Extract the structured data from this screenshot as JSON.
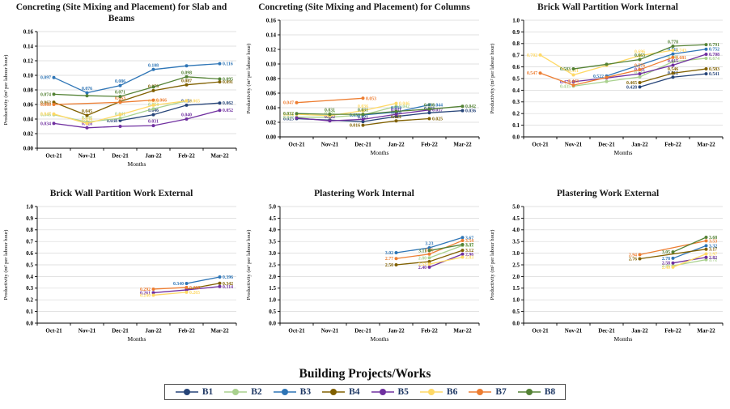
{
  "figure_title": "Building Projects/Works productivity line charts",
  "xlabel": "Months",
  "months": [
    "Oct-21",
    "Nov-21",
    "Dec-21",
    "Jan-22",
    "Feb-22",
    "Mar-22"
  ],
  "legend": {
    "title": "Building Projects/Works",
    "position": "bottom",
    "items": [
      {
        "label": "B1",
        "color": "#264478"
      },
      {
        "label": "B2",
        "color": "#A9D18E"
      },
      {
        "label": "B3",
        "color": "#2E75B6"
      },
      {
        "label": "B4",
        "color": "#806000"
      },
      {
        "label": "B5",
        "color": "#7030A0"
      },
      {
        "label": "B6",
        "color": "#FFD966"
      },
      {
        "label": "B7",
        "color": "#ED7D31"
      },
      {
        "label": "B8",
        "color": "#548235"
      }
    ]
  },
  "chart_data": [
    {
      "type": "line",
      "title": "Concreting (Site Mixing and Placement) for Slab and Beams",
      "xlabel": "Months",
      "ylabel": "Productivity (m³ per labour hour)",
      "ylim": [
        0,
        0.16
      ],
      "ystep": 0.02,
      "ydecimals": 2,
      "grid": "horizontal",
      "categories": [
        "Oct-21",
        "Nov-21",
        "Dec-21",
        "Jan-22",
        "Feb-22",
        "Mar-22"
      ],
      "series": [
        {
          "name": "B1",
          "color": "#264478",
          "values": [
            null,
            null,
            0.038,
            0.046,
            0.059,
            0.062
          ],
          "labels": [
            "",
            "",
            "0.038",
            "0.046",
            "0.059",
            "0.062"
          ]
        },
        {
          "name": "B2",
          "color": "#A9D18E",
          "values": [
            0.046,
            0.036,
            0.041,
            0.054,
            0.065,
            null
          ],
          "labels": [
            "0.046",
            "0.036",
            "0.041",
            "0.054",
            "",
            ""
          ]
        },
        {
          "name": "B3",
          "color": "#2E75B6",
          "values": [
            0.097,
            0.076,
            0.086,
            0.108,
            0.113,
            0.116
          ],
          "labels": [
            "0.097",
            "0.076",
            "0.086",
            "0.108",
            "",
            "0.116"
          ]
        },
        {
          "name": "B4",
          "color": "#806000",
          "values": [
            0.063,
            0.045,
            0.064,
            0.079,
            0.087,
            0.091
          ],
          "labels": [
            "0.063",
            "0.045",
            "",
            "0.079",
            "0.087",
            "0.091"
          ]
        },
        {
          "name": "B5",
          "color": "#7030A0",
          "values": [
            0.034,
            0.028,
            0.03,
            0.031,
            0.04,
            0.052
          ],
          "labels": [
            "0.034",
            "0.028",
            "",
            "0.031",
            "0.040",
            "0.052"
          ]
        },
        {
          "name": "B6",
          "color": "#FFD966",
          "values": [
            0.047,
            0.034,
            0.046,
            0.059,
            0.065,
            null
          ],
          "labels": [
            "0.047",
            "0.034",
            "",
            "0.059",
            "0.065",
            ""
          ]
        },
        {
          "name": "B7",
          "color": "#ED7D31",
          "values": [
            0.06,
            null,
            0.063,
            0.066,
            null,
            null
          ],
          "labels": [
            "0.060",
            "",
            "0.063",
            "0.066",
            "",
            ""
          ]
        },
        {
          "name": "B8",
          "color": "#548235",
          "values": [
            0.074,
            0.072,
            0.071,
            0.084,
            0.098,
            0.095
          ],
          "labels": [
            "0.074",
            "",
            "0.071",
            "",
            "0.098",
            "0.095"
          ]
        }
      ]
    },
    {
      "type": "line",
      "title": "Concreting (Site Mixing and Placement) for Columns",
      "xlabel": "Months",
      "ylabel": "Productivity (m³ per labour hour)",
      "ylim": [
        0,
        0.16
      ],
      "ystep": 0.02,
      "ydecimals": 2,
      "grid": "horizontal",
      "categories": [
        "Oct-21",
        "Nov-21",
        "Dec-21",
        "Jan-22",
        "Feb-22",
        "Mar-22"
      ],
      "series": [
        {
          "name": "B1",
          "color": "#264478",
          "values": [
            0.025,
            0.023,
            0.021,
            0.028,
            0.033,
            0.036
          ],
          "labels": [
            "0.025",
            "",
            "0.021",
            "0.028",
            "0.033",
            "0.036"
          ]
        },
        {
          "name": "B2",
          "color": "#A9D18E",
          "values": [
            0.027,
            0.027,
            0.03,
            0.042,
            null,
            null
          ],
          "labels": [
            "0.027",
            "0.027",
            "",
            "0.042",
            "",
            ""
          ]
        },
        {
          "name": "B3",
          "color": "#2E75B6",
          "values": [
            null,
            null,
            0.03,
            0.034,
            0.044,
            null
          ],
          "labels": [
            "",
            "",
            "0.030",
            "0.034",
            "0.044",
            ""
          ]
        },
        {
          "name": "B4",
          "color": "#806000",
          "values": [
            null,
            null,
            0.016,
            0.022,
            0.025,
            null
          ],
          "labels": [
            "",
            "",
            "0.016",
            "0.022",
            "0.025",
            ""
          ]
        },
        {
          "name": "B5",
          "color": "#7030A0",
          "values": [
            0.026,
            0.022,
            0.024,
            0.031,
            0.037,
            null
          ],
          "labels": [
            "",
            "0.022",
            "",
            "0.031",
            "0.037",
            ""
          ]
        },
        {
          "name": "B6",
          "color": "#FFD966",
          "values": [
            0.031,
            0.029,
            0.036,
            0.046,
            null,
            null
          ],
          "labels": [
            "0.031",
            "",
            "0.036",
            "0.046",
            "",
            ""
          ]
        },
        {
          "name": "B7",
          "color": "#ED7D31",
          "values": [
            0.047,
            null,
            0.053,
            null,
            null,
            null
          ],
          "labels": [
            "0.047",
            "",
            "0.053",
            "",
            "",
            ""
          ]
        },
        {
          "name": "B8",
          "color": "#548235",
          "values": [
            0.032,
            0.031,
            0.031,
            0.035,
            0.038,
            0.042
          ],
          "labels": [
            "0.032",
            "0.031",
            "0.031",
            "",
            "0.038",
            "0.042"
          ]
        }
      ]
    },
    {
      "type": "line",
      "title": "Brick Wall Partition Work Internal",
      "xlabel": "Months",
      "ylabel": "Productivity (m² per labour hour)",
      "ylim": [
        0,
        1.0
      ],
      "ystep": 0.1,
      "ydecimals": 1,
      "grid": "horizontal",
      "categories": [
        "Oct-21",
        "Nov-21",
        "Dec-21",
        "Jan-22",
        "Feb-22",
        "Mar-22"
      ],
      "series": [
        {
          "name": "B1",
          "color": "#264478",
          "values": [
            null,
            null,
            null,
            0.428,
            0.512,
            0.541
          ],
          "labels": [
            "",
            "",
            "",
            "0.428",
            "0.512",
            "0.541"
          ]
        },
        {
          "name": "B2",
          "color": "#A9D18E",
          "values": [
            null,
            0.435,
            0.475,
            0.514,
            0.645,
            0.674
          ],
          "labels": [
            "",
            "0.435",
            "",
            "0.514",
            "0.645",
            "0.674"
          ]
        },
        {
          "name": "B3",
          "color": "#2E75B6",
          "values": [
            null,
            null,
            0.522,
            null,
            0.711,
            0.752
          ],
          "labels": [
            "",
            "",
            "0.522",
            "",
            "0.711",
            "0.752"
          ]
        },
        {
          "name": "B4",
          "color": "#806000",
          "values": [
            null,
            null,
            null,
            0.465,
            0.546,
            0.583
          ],
          "labels": [
            "",
            "",
            "",
            "0.465",
            "0.546",
            "0.583"
          ]
        },
        {
          "name": "B5",
          "color": "#7030A0",
          "values": [
            null,
            0.473,
            0.505,
            0.541,
            0.615,
            0.708
          ],
          "labels": [
            "",
            "0.473",
            "",
            "0.541",
            "0.615",
            "0.708"
          ]
        },
        {
          "name": "B6",
          "color": "#FFD966",
          "values": [
            0.702,
            0.531,
            0.613,
            0.696,
            0.743,
            null
          ],
          "labels": [
            "0.702",
            "0.531",
            "",
            "0.696",
            "0.743",
            ""
          ]
        },
        {
          "name": "B7",
          "color": "#ED7D31",
          "values": [
            0.547,
            0.443,
            0.51,
            0.576,
            0.681,
            null
          ],
          "labels": [
            "0.547",
            "0.443",
            "",
            "0.576",
            "0.681",
            ""
          ]
        },
        {
          "name": "B8",
          "color": "#548235",
          "values": [
            null,
            0.583,
            0.622,
            0.663,
            0.778,
            0.791
          ],
          "labels": [
            "",
            "0.583",
            "",
            "0.663",
            "0.778",
            "0.791"
          ]
        }
      ]
    },
    {
      "type": "line",
      "title": "Brick Wall Partition Work External",
      "xlabel": "Months",
      "ylabel": "Productivity (m² per labour hour)",
      "ylim": [
        0,
        1.0
      ],
      "ystep": 0.1,
      "ydecimals": 1,
      "grid": "horizontal",
      "categories": [
        "Oct-21",
        "Nov-21",
        "Dec-21",
        "Jan-22",
        "Feb-22",
        "Mar-22"
      ],
      "series": [
        {
          "name": "B3",
          "color": "#2E75B6",
          "values": [
            null,
            null,
            null,
            null,
            0.34,
            0.396
          ],
          "labels": [
            "",
            "",
            "",
            "",
            "0.340",
            "0.396"
          ]
        },
        {
          "name": "B4",
          "color": "#806000",
          "values": [
            null,
            null,
            null,
            null,
            0.29,
            0.342
          ],
          "labels": [
            "",
            "",
            "",
            "",
            "",
            "0.342"
          ]
        },
        {
          "name": "B5",
          "color": "#7030A0",
          "values": [
            null,
            null,
            null,
            0.261,
            0.285,
            0.314
          ],
          "labels": [
            "",
            "",
            "",
            "0.261",
            "",
            "0.314"
          ]
        },
        {
          "name": "B6",
          "color": "#FFD966",
          "values": [
            null,
            null,
            null,
            0.24,
            0.265,
            null
          ],
          "labels": [
            "",
            "",
            "",
            "0.240",
            "0.265",
            ""
          ]
        },
        {
          "name": "B7",
          "color": "#ED7D31",
          "values": [
            null,
            null,
            null,
            0.292,
            0.306,
            null
          ],
          "labels": [
            "",
            "",
            "",
            "0.292",
            "0.306",
            ""
          ]
        }
      ]
    },
    {
      "type": "line",
      "title": "Plastering Work Internal",
      "xlabel": "Months",
      "ylabel": "Productivity (m² per labour hour)",
      "ylim": [
        0,
        5.0
      ],
      "ystep": 0.5,
      "ydecimals": 1,
      "grid": "horizontal",
      "categories": [
        "Oct-21",
        "Nov-21",
        "Dec-21",
        "Jan-22",
        "Feb-22",
        "Mar-22"
      ],
      "series": [
        {
          "name": "B2",
          "color": "#A9D18E",
          "values": [
            null,
            null,
            null,
            null,
            2.8,
            3.33
          ],
          "labels": [
            "",
            "",
            "",
            "",
            "2.80",
            "3.33"
          ]
        },
        {
          "name": "B3",
          "color": "#2E75B6",
          "values": [
            null,
            null,
            null,
            3.02,
            3.23,
            3.67
          ],
          "labels": [
            "",
            "",
            "",
            "3.02",
            "3.23",
            "3.67"
          ]
        },
        {
          "name": "B4",
          "color": "#806000",
          "values": [
            null,
            null,
            null,
            2.5,
            2.64,
            3.12
          ],
          "labels": [
            "",
            "",
            "",
            "2.50",
            "",
            "3.12"
          ]
        },
        {
          "name": "B5",
          "color": "#7030A0",
          "values": [
            null,
            null,
            null,
            null,
            2.4,
            2.96
          ],
          "labels": [
            "",
            "",
            "",
            "",
            "2.40",
            "2.96"
          ]
        },
        {
          "name": "B6",
          "color": "#FFD966",
          "values": [
            null,
            null,
            null,
            null,
            2.53,
            2.83
          ],
          "labels": [
            "",
            "",
            "",
            "",
            "2.53",
            "2.83"
          ]
        },
        {
          "name": "B7",
          "color": "#ED7D31",
          "values": [
            null,
            null,
            null,
            2.77,
            2.96,
            3.54
          ],
          "labels": [
            "",
            "",
            "",
            "2.77",
            "2.96",
            "3.54"
          ]
        },
        {
          "name": "B8",
          "color": "#548235",
          "values": [
            null,
            null,
            null,
            null,
            3.11,
            3.37
          ],
          "labels": [
            "",
            "",
            "",
            "",
            "3.11",
            "3.37"
          ]
        }
      ]
    },
    {
      "type": "line",
      "title": "Plastering Work External",
      "xlabel": "Months",
      "ylabel": "Productivity (m² per labour hour)",
      "ylim": [
        0,
        5.0
      ],
      "ystep": 0.5,
      "ydecimals": 1,
      "grid": "horizontal",
      "categories": [
        "Oct-21",
        "Nov-21",
        "Dec-21",
        "Jan-22",
        "Feb-22",
        "Mar-22"
      ],
      "series": [
        {
          "name": "B2",
          "color": "#A9D18E",
          "values": [
            null,
            null,
            null,
            null,
            2.46,
            2.72
          ],
          "labels": [
            "",
            "",
            "",
            "",
            "2.46",
            "2.72"
          ]
        },
        {
          "name": "B3",
          "color": "#2E75B6",
          "values": [
            null,
            null,
            null,
            null,
            2.78,
            3.32
          ],
          "labels": [
            "",
            "",
            "",
            "",
            "2.78",
            "3.32"
          ]
        },
        {
          "name": "B4",
          "color": "#806000",
          "values": [
            null,
            null,
            null,
            2.76,
            null,
            3.17
          ],
          "labels": [
            "",
            "",
            "",
            "2.76",
            "",
            "3.17"
          ]
        },
        {
          "name": "B5",
          "color": "#7030A0",
          "values": [
            null,
            null,
            null,
            null,
            2.58,
            2.82
          ],
          "labels": [
            "",
            "",
            "",
            "",
            "2.58",
            "2.82"
          ]
        },
        {
          "name": "B6",
          "color": "#FFD966",
          "values": [
            null,
            null,
            null,
            null,
            2.4,
            2.97
          ],
          "labels": [
            "",
            "",
            "",
            "",
            "2.40",
            "2.97"
          ]
        },
        {
          "name": "B7",
          "color": "#ED7D31",
          "values": [
            null,
            null,
            null,
            2.94,
            null,
            3.53
          ],
          "labels": [
            "",
            "",
            "",
            "2.94",
            "",
            "3.53"
          ]
        },
        {
          "name": "B8",
          "color": "#548235",
          "values": [
            null,
            null,
            null,
            null,
            3.05,
            3.68
          ],
          "labels": [
            "",
            "",
            "",
            "",
            "3.05",
            "3.68"
          ]
        }
      ]
    }
  ]
}
